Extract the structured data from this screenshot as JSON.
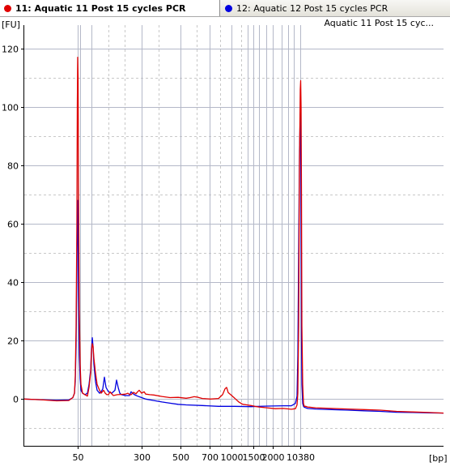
{
  "tabs": [
    {
      "label": "11: Aquatic 11 Post 15 cycles PCR",
      "color": "#e00000",
      "active": true
    },
    {
      "label": "12: Aquatic 12 Post 15 cycles PCR",
      "color": "#0000e0",
      "active": false
    }
  ],
  "chart_data": {
    "type": "line",
    "title": "",
    "ylabel": "[FU]",
    "xlabel": "[bp]",
    "legend": "Aquatic 11 Post 15 cyc...",
    "legend_position": "top-right",
    "ylim": [
      -16,
      128
    ],
    "yticks": [
      0,
      20,
      40,
      60,
      80,
      100,
      120
    ],
    "xlim": [
      0,
      518
    ],
    "x_tick_labels": [
      {
        "x": 66,
        "label": "50"
      },
      {
        "x": 145,
        "label": "300"
      },
      {
        "x": 193,
        "label": "500"
      },
      {
        "x": 229,
        "label": "700"
      },
      {
        "x": 256,
        "label": "1000"
      },
      {
        "x": 283,
        "label": "1500"
      },
      {
        "x": 307,
        "label": "2000"
      },
      {
        "x": 341,
        "label": "10380"
      }
    ],
    "x_gridlines": [
      66,
      69,
      83,
      145,
      193,
      229,
      256,
      276,
      283,
      290,
      299,
      307,
      318,
      326,
      333,
      341
    ],
    "x_minor_gridlines": [
      104,
      124,
      166,
      213,
      242,
      268
    ],
    "grid": true,
    "series": [
      {
        "name": "11: Aquatic 11 Post 15 cycles PCR",
        "color": "#e00000",
        "x": [
          0,
          20,
          40,
          55,
          60,
          62,
          63,
          64,
          65,
          65.5,
          66,
          66.5,
          67,
          68,
          69,
          70,
          72,
          75,
          78,
          80,
          82,
          83,
          84,
          85,
          86,
          88,
          90,
          93,
          95,
          98,
          100,
          102,
          104,
          106,
          108,
          110,
          115,
          120,
          125,
          128,
          130,
          132,
          135,
          138,
          140,
          142,
          145,
          148,
          150,
          155,
          160,
          170,
          180,
          190,
          200,
          205,
          210,
          215,
          220,
          230,
          240,
          245,
          248,
          250,
          252,
          255,
          260,
          265,
          270,
          275,
          280,
          285,
          290,
          300,
          310,
          320,
          330,
          335,
          337,
          338,
          339,
          340,
          341,
          341.5,
          342,
          342.5,
          343,
          344,
          345,
          346,
          348,
          350,
          360,
          380,
          400,
          420,
          440,
          460,
          480,
          500,
          518
        ],
        "y": [
          0,
          -0.2,
          -0.6,
          -0.5,
          0.5,
          2,
          8,
          25,
          60,
          100,
          117,
          110,
          75,
          30,
          12,
          5,
          2,
          1.5,
          1,
          4,
          9,
          16,
          19,
          18,
          14,
          9,
          5,
          3,
          2,
          3,
          2,
          1.5,
          1.5,
          2.5,
          1.8,
          1.2,
          1.5,
          1.6,
          1.7,
          2,
          1.6,
          1.5,
          2.3,
          1.8,
          2.5,
          3,
          2,
          2.5,
          1.7,
          1.5,
          1.4,
          0.9,
          0.5,
          0.6,
          0.3,
          0.5,
          0.8,
          0.6,
          0.2,
          0,
          0.2,
          1.5,
          3.5,
          4,
          2.2,
          1.5,
          0.3,
          -1,
          -1.8,
          -2,
          -2.2,
          -2.5,
          -2.7,
          -3,
          -3.3,
          -3.2,
          -3.5,
          -3.3,
          -2,
          2,
          25,
          80,
          106,
          109,
          100,
          70,
          25,
          5,
          -1.5,
          -2.5,
          -2.5,
          -2.7,
          -3,
          -3.2,
          -3.4,
          -3.6,
          -3.8,
          -4.2,
          -4.4,
          -4.6,
          -4.8
        ]
      },
      {
        "name": "12: Aquatic 12 Post 15 cycles PCR",
        "color": "#0000e0",
        "x": [
          0,
          20,
          40,
          55,
          60,
          62,
          63,
          64,
          65,
          65.5,
          66,
          66.5,
          67,
          68,
          69,
          70,
          72,
          75,
          78,
          80,
          82,
          83,
          84,
          85,
          86,
          88,
          90,
          93,
          95,
          97,
          99,
          101,
          104,
          108,
          112,
          114,
          116,
          118,
          120,
          125,
          130,
          132,
          134,
          136,
          140,
          145,
          150,
          160,
          170,
          180,
          190,
          200,
          220,
          240,
          260,
          280,
          300,
          320,
          330,
          335,
          337,
          338,
          339,
          340,
          341,
          341.5,
          342,
          342.5,
          343,
          344,
          345,
          346,
          348,
          350,
          360,
          380,
          400,
          420,
          440,
          460,
          480,
          500,
          518
        ],
        "y": [
          0,
          -0.2,
          -0.4,
          -0.3,
          0.5,
          2,
          6,
          18,
          45,
          62,
          68,
          55,
          36,
          15,
          7,
          3,
          2,
          1.5,
          2,
          5,
          10,
          17,
          21,
          18,
          12,
          6,
          3,
          2,
          2.5,
          3.5,
          7.5,
          4,
          2.5,
          2,
          3,
          6.5,
          4,
          2,
          1.5,
          1.2,
          1.2,
          2.5,
          2,
          1.5,
          1,
          0.5,
          0,
          -0.5,
          -1,
          -1.4,
          -1.8,
          -2,
          -2.2,
          -2.5,
          -2.5,
          -2.6,
          -2.4,
          -2.3,
          -2.3,
          -1.5,
          1,
          15,
          50,
          85,
          98,
          90,
          60,
          22,
          5,
          -1.5,
          -2.5,
          -2.8,
          -3,
          -3.2,
          -3.4,
          -3.6,
          -3.8,
          -4,
          -4.2,
          -4.5,
          -4.6,
          -4.7,
          -4.8
        ]
      }
    ]
  }
}
